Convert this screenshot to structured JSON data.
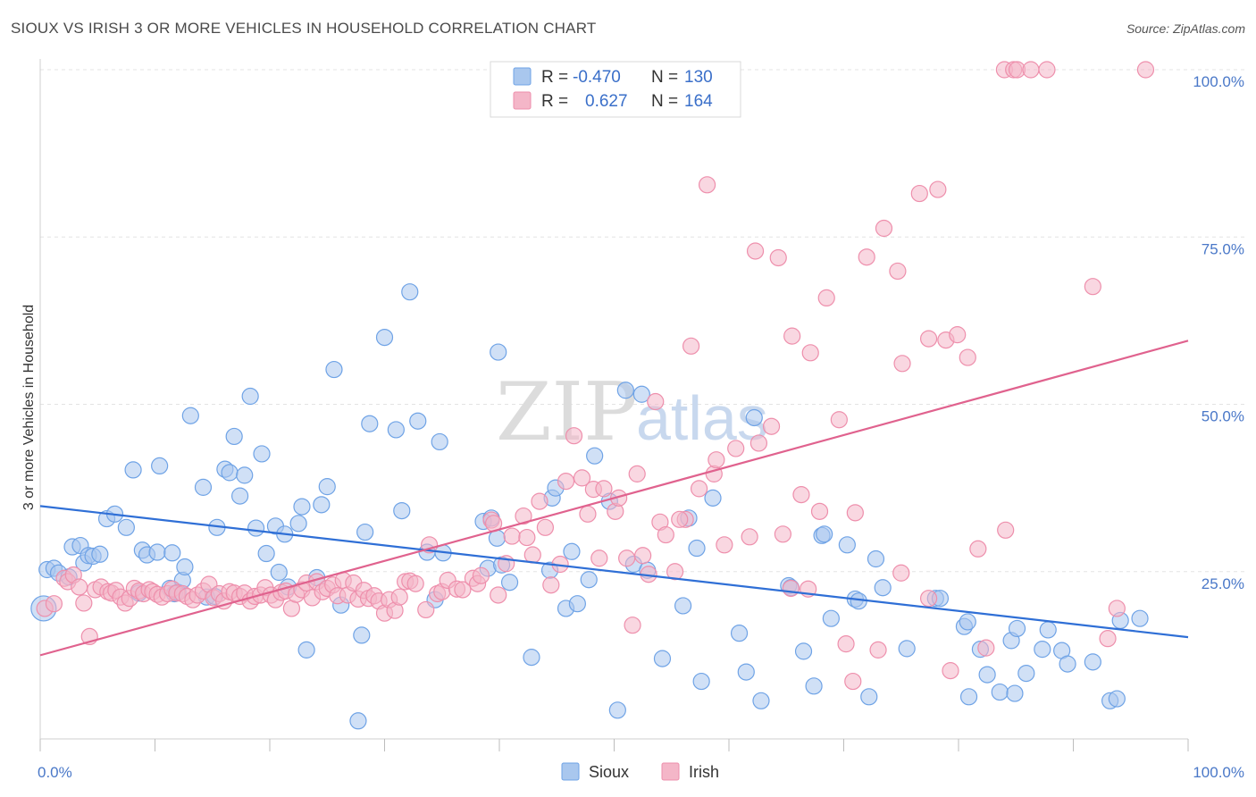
{
  "title": "SIOUX VS IRISH 3 OR MORE VEHICLES IN HOUSEHOLD CORRELATION CHART",
  "source": "Source: ZipAtlas.com",
  "watermark": {
    "zip": "ZIP",
    "atlas": "atlas"
  },
  "legend": {
    "rows": [
      {
        "r_label": "R = ",
        "r_value": "-0.470",
        "n_label": "N = ",
        "n_value": "130",
        "color": "#a9c7ee"
      },
      {
        "r_label": "R = ",
        "r_value": "0.627",
        "n_label": "N = ",
        "n_value": "164",
        "color": "#f4b6c8"
      }
    ]
  },
  "bottom_legend": [
    {
      "label": "Sioux",
      "color": "#a9c7ee"
    },
    {
      "label": "Irish",
      "color": "#f4b6c8"
    }
  ],
  "chart_data": {
    "type": "scatter",
    "title": "SIOUX VS IRISH 3 OR MORE VEHICLES IN HOUSEHOLD CORRELATION CHART",
    "xlabel": "",
    "ylabel": "3 or more Vehicles in Household",
    "xlim": [
      0,
      100
    ],
    "ylim": [
      0,
      100
    ],
    "x_tick_labels": [
      "0.0%",
      "100.0%"
    ],
    "y_tick_labels": [
      "25.0%",
      "50.0%",
      "75.0%",
      "100.0%"
    ],
    "y_ticks": [
      25,
      50,
      75,
      100
    ],
    "grid": true,
    "legend_position": "top-center",
    "series": [
      {
        "name": "Sioux",
        "color": "#6fa3e6",
        "fill": "#a9c7ee",
        "trend_color": "#2f6fd6",
        "r": -0.47,
        "n": 130,
        "trend": {
          "x": [
            0,
            100
          ],
          "y": [
            34.8,
            15.2
          ]
        },
        "points": [
          [
            0.3,
            19.5
          ],
          [
            0.6,
            25.3
          ],
          [
            1.2,
            25.5
          ],
          [
            1.6,
            24.8
          ],
          [
            2.5,
            24.2
          ],
          [
            2.8,
            28.7
          ],
          [
            3.5,
            28.9
          ],
          [
            3.8,
            26.3
          ],
          [
            4.2,
            27.4
          ],
          [
            4.6,
            27.3
          ],
          [
            5.2,
            27.6
          ],
          [
            5.8,
            32.9
          ],
          [
            6.5,
            33.6
          ],
          [
            7.5,
            31.6
          ],
          [
            8.1,
            40.2
          ],
          [
            8.6,
            21.8
          ],
          [
            8.9,
            28.2
          ],
          [
            9.3,
            27.5
          ],
          [
            10.2,
            27.9
          ],
          [
            10.4,
            40.8
          ],
          [
            11.3,
            22.5
          ],
          [
            11.5,
            27.8
          ],
          [
            11.7,
            21.7
          ],
          [
            12.0,
            21.9
          ],
          [
            12.4,
            23.7
          ],
          [
            12.6,
            25.7
          ],
          [
            13.1,
            48.3
          ],
          [
            14.2,
            37.6
          ],
          [
            14.5,
            21.2
          ],
          [
            15.2,
            21.3
          ],
          [
            15.4,
            31.6
          ],
          [
            16.1,
            40.3
          ],
          [
            16.5,
            39.8
          ],
          [
            16.9,
            45.2
          ],
          [
            17.4,
            36.3
          ],
          [
            17.8,
            39.4
          ],
          [
            18.3,
            51.2
          ],
          [
            18.8,
            31.5
          ],
          [
            19.3,
            42.6
          ],
          [
            19.7,
            27.7
          ],
          [
            20.5,
            31.8
          ],
          [
            20.8,
            24.9
          ],
          [
            21.3,
            30.6
          ],
          [
            21.6,
            22.7
          ],
          [
            22.5,
            32.2
          ],
          [
            22.8,
            34.7
          ],
          [
            23.2,
            13.3
          ],
          [
            24.1,
            24.1
          ],
          [
            24.5,
            35.0
          ],
          [
            25.0,
            37.7
          ],
          [
            25.6,
            55.2
          ],
          [
            26.2,
            20.0
          ],
          [
            27.7,
            2.7
          ],
          [
            28.0,
            15.5
          ],
          [
            28.3,
            30.9
          ],
          [
            28.7,
            47.1
          ],
          [
            30.0,
            60.0
          ],
          [
            31.0,
            46.2
          ],
          [
            31.5,
            34.1
          ],
          [
            32.2,
            66.8
          ],
          [
            32.9,
            47.5
          ],
          [
            33.7,
            27.9
          ],
          [
            34.4,
            20.8
          ],
          [
            34.8,
            44.4
          ],
          [
            35.1,
            27.8
          ],
          [
            38.6,
            32.5
          ],
          [
            39.0,
            25.5
          ],
          [
            39.3,
            33.0
          ],
          [
            39.9,
            57.8
          ],
          [
            39.8,
            30.0
          ],
          [
            40.2,
            26.0
          ],
          [
            40.9,
            23.4
          ],
          [
            42.8,
            12.2
          ],
          [
            44.4,
            25.2
          ],
          [
            44.6,
            36.0
          ],
          [
            44.9,
            37.5
          ],
          [
            45.8,
            19.5
          ],
          [
            46.3,
            28.0
          ],
          [
            46.8,
            20.2
          ],
          [
            47.8,
            23.8
          ],
          [
            48.3,
            42.3
          ],
          [
            49.6,
            35.5
          ],
          [
            50.3,
            4.3
          ],
          [
            51.0,
            52.1
          ],
          [
            51.7,
            26.1
          ],
          [
            52.4,
            51.5
          ],
          [
            52.9,
            25.2
          ],
          [
            54.2,
            12.0
          ],
          [
            56.0,
            19.9
          ],
          [
            56.5,
            33.0
          ],
          [
            57.2,
            28.5
          ],
          [
            57.6,
            8.6
          ],
          [
            58.6,
            36.0
          ],
          [
            60.9,
            15.8
          ],
          [
            61.5,
            10.0
          ],
          [
            62.2,
            48.0
          ],
          [
            62.8,
            5.7
          ],
          [
            65.2,
            22.9
          ],
          [
            65.4,
            22.6
          ],
          [
            66.5,
            13.1
          ],
          [
            67.4,
            7.9
          ],
          [
            68.1,
            30.4
          ],
          [
            68.3,
            30.6
          ],
          [
            68.9,
            18.0
          ],
          [
            70.3,
            29.0
          ],
          [
            71.0,
            20.9
          ],
          [
            71.3,
            20.6
          ],
          [
            72.2,
            6.3
          ],
          [
            72.8,
            26.9
          ],
          [
            73.4,
            22.6
          ],
          [
            75.5,
            13.5
          ],
          [
            78.0,
            21.0
          ],
          [
            78.4,
            21.0
          ],
          [
            80.5,
            16.8
          ],
          [
            80.8,
            17.5
          ],
          [
            80.9,
            6.3
          ],
          [
            81.9,
            13.4
          ],
          [
            82.5,
            9.6
          ],
          [
            83.6,
            7.0
          ],
          [
            84.6,
            14.7
          ],
          [
            84.9,
            6.8
          ],
          [
            85.1,
            16.5
          ],
          [
            85.9,
            9.8
          ],
          [
            87.3,
            13.4
          ],
          [
            87.8,
            16.3
          ],
          [
            89.0,
            13.2
          ],
          [
            89.5,
            11.2
          ],
          [
            91.7,
            11.5
          ],
          [
            93.2,
            5.7
          ],
          [
            93.8,
            6.0
          ],
          [
            94.1,
            17.7
          ],
          [
            95.8,
            18.0
          ]
        ]
      },
      {
        "name": "Irish",
        "color": "#ee8fac",
        "fill": "#f4b6c8",
        "trend_color": "#e0628e",
        "r": 0.627,
        "n": 164,
        "trend": {
          "x": [
            0,
            100
          ],
          "y": [
            12.5,
            59.5
          ]
        },
        "points": [
          [
            0.4,
            19.5
          ],
          [
            1.2,
            20.2
          ],
          [
            2.1,
            24.0
          ],
          [
            2.4,
            23.5
          ],
          [
            2.9,
            24.5
          ],
          [
            3.4,
            22.7
          ],
          [
            3.8,
            20.3
          ],
          [
            4.3,
            15.3
          ],
          [
            4.8,
            22.3
          ],
          [
            5.3,
            22.7
          ],
          [
            5.9,
            22.0
          ],
          [
            6.2,
            21.8
          ],
          [
            6.6,
            22.2
          ],
          [
            7.0,
            21.2
          ],
          [
            7.4,
            20.3
          ],
          [
            7.8,
            21.0
          ],
          [
            8.2,
            22.5
          ],
          [
            8.6,
            22.1
          ],
          [
            9.0,
            21.7
          ],
          [
            9.5,
            22.3
          ],
          [
            9.8,
            22.0
          ],
          [
            10.2,
            21.6
          ],
          [
            10.6,
            21.2
          ],
          [
            11.1,
            21.7
          ],
          [
            11.5,
            22.4
          ],
          [
            11.9,
            21.8
          ],
          [
            12.4,
            21.7
          ],
          [
            12.8,
            21.3
          ],
          [
            13.3,
            20.8
          ],
          [
            13.7,
            21.5
          ],
          [
            14.2,
            22.1
          ],
          [
            14.7,
            23.1
          ],
          [
            15.1,
            21.1
          ],
          [
            15.6,
            21.7
          ],
          [
            16.0,
            20.6
          ],
          [
            16.5,
            22.0
          ],
          [
            16.9,
            21.8
          ],
          [
            17.4,
            21.3
          ],
          [
            17.8,
            21.8
          ],
          [
            18.3,
            20.6
          ],
          [
            18.7,
            21.3
          ],
          [
            19.2,
            21.5
          ],
          [
            19.6,
            22.6
          ],
          [
            20.1,
            21.5
          ],
          [
            20.5,
            20.8
          ],
          [
            21.0,
            21.9
          ],
          [
            21.4,
            22.1
          ],
          [
            21.9,
            19.5
          ],
          [
            22.3,
            21.6
          ],
          [
            22.8,
            22.3
          ],
          [
            23.2,
            23.3
          ],
          [
            23.7,
            21.1
          ],
          [
            24.1,
            23.5
          ],
          [
            24.6,
            22.0
          ],
          [
            25.0,
            22.5
          ],
          [
            25.5,
            23.0
          ],
          [
            25.9,
            21.4
          ],
          [
            26.4,
            23.7
          ],
          [
            26.8,
            21.5
          ],
          [
            27.3,
            23.3
          ],
          [
            27.7,
            20.9
          ],
          [
            28.2,
            22.2
          ],
          [
            28.6,
            21.0
          ],
          [
            29.1,
            21.4
          ],
          [
            29.5,
            20.6
          ],
          [
            30.0,
            18.8
          ],
          [
            30.4,
            20.8
          ],
          [
            30.9,
            19.2
          ],
          [
            31.3,
            21.2
          ],
          [
            31.8,
            23.5
          ],
          [
            32.2,
            23.6
          ],
          [
            32.7,
            23.2
          ],
          [
            33.6,
            19.3
          ],
          [
            33.9,
            29.0
          ],
          [
            34.6,
            21.7
          ],
          [
            35.0,
            22.0
          ],
          [
            35.5,
            23.7
          ],
          [
            36.3,
            22.4
          ],
          [
            36.8,
            22.3
          ],
          [
            37.7,
            24.0
          ],
          [
            38.1,
            23.2
          ],
          [
            38.4,
            24.4
          ],
          [
            39.3,
            32.7
          ],
          [
            39.5,
            32.2
          ],
          [
            39.9,
            21.5
          ],
          [
            40.6,
            26.2
          ],
          [
            41.1,
            30.3
          ],
          [
            42.1,
            33.3
          ],
          [
            42.4,
            30.1
          ],
          [
            42.9,
            27.5
          ],
          [
            43.5,
            35.5
          ],
          [
            44.0,
            31.6
          ],
          [
            44.5,
            23.0
          ],
          [
            45.3,
            26.1
          ],
          [
            45.8,
            38.5
          ],
          [
            46.5,
            45.3
          ],
          [
            47.2,
            39.0
          ],
          [
            47.7,
            33.6
          ],
          [
            48.2,
            37.3
          ],
          [
            48.7,
            27.0
          ],
          [
            49.1,
            37.4
          ],
          [
            50.1,
            34.0
          ],
          [
            50.4,
            36.0
          ],
          [
            51.1,
            27.0
          ],
          [
            51.6,
            17.0
          ],
          [
            52.0,
            39.6
          ],
          [
            52.5,
            27.4
          ],
          [
            53.0,
            24.6
          ],
          [
            53.6,
            50.4
          ],
          [
            54.0,
            32.4
          ],
          [
            54.5,
            30.5
          ],
          [
            55.3,
            25.0
          ],
          [
            56.2,
            32.8
          ],
          [
            56.7,
            58.7
          ],
          [
            57.4,
            37.4
          ],
          [
            58.1,
            82.8
          ],
          [
            58.7,
            39.6
          ],
          [
            58.9,
            41.7
          ],
          [
            59.6,
            29.0
          ],
          [
            60.6,
            43.4
          ],
          [
            61.8,
            30.2
          ],
          [
            62.3,
            72.9
          ],
          [
            62.6,
            44.2
          ],
          [
            63.7,
            46.7
          ],
          [
            64.3,
            71.9
          ],
          [
            64.7,
            30.6
          ],
          [
            65.5,
            60.2
          ],
          [
            66.3,
            36.5
          ],
          [
            67.1,
            57.7
          ],
          [
            67.9,
            34.0
          ],
          [
            68.5,
            65.9
          ],
          [
            69.6,
            47.7
          ],
          [
            70.2,
            14.2
          ],
          [
            71.0,
            33.8
          ],
          [
            72.0,
            72.0
          ],
          [
            73.5,
            76.3
          ],
          [
            74.7,
            69.9
          ],
          [
            75.1,
            56.1
          ],
          [
            76.6,
            81.5
          ],
          [
            77.4,
            59.8
          ],
          [
            78.2,
            82.1
          ],
          [
            78.9,
            59.6
          ],
          [
            79.9,
            60.4
          ],
          [
            80.8,
            57.0
          ],
          [
            81.7,
            28.4
          ],
          [
            84.0,
            100.0
          ],
          [
            84.8,
            100.0
          ],
          [
            85.1,
            100.0
          ],
          [
            86.3,
            100.0
          ],
          [
            87.7,
            100.0
          ],
          [
            91.7,
            67.6
          ],
          [
            93.8,
            19.5
          ],
          [
            96.3,
            100.0
          ],
          [
            93.0,
            15.0
          ],
          [
            70.8,
            8.6
          ],
          [
            73.0,
            13.3
          ],
          [
            65.4,
            22.5
          ],
          [
            66.9,
            22.4
          ],
          [
            75.0,
            24.8
          ],
          [
            77.4,
            21.0
          ],
          [
            79.3,
            10.2
          ],
          [
            82.4,
            13.6
          ],
          [
            84.1,
            31.2
          ],
          [
            55.7,
            32.8
          ]
        ]
      }
    ]
  }
}
